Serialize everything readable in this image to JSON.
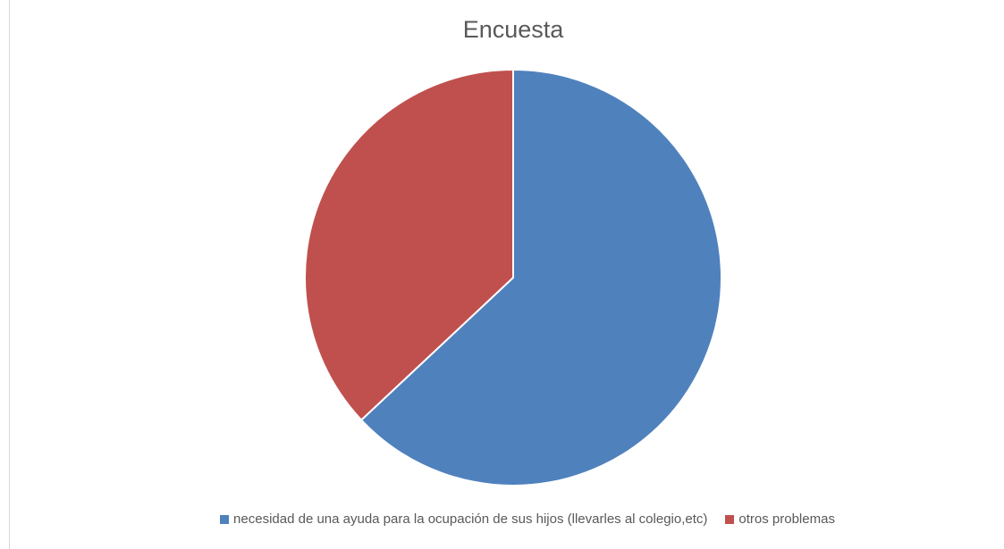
{
  "chart_data": {
    "type": "pie",
    "title": "Encuesta",
    "categories": [
      "necesidad de una ayuda para la ocupación de sus hijos (llevarles al colegio,etc)",
      "otros problemas"
    ],
    "values": [
      63,
      37
    ],
    "colors": [
      "#4f81bd",
      "#c0504d"
    ],
    "start_angle_deg": 0,
    "direction": "clockwise",
    "legend_position": "bottom"
  }
}
